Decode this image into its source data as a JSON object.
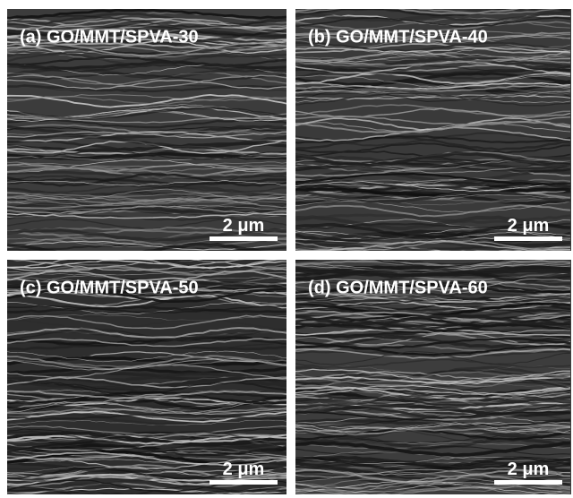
{
  "panels": [
    {
      "label": "(a)  GO/MMT/SPVA-30",
      "scale_bar": "2 μm"
    },
    {
      "label": "(b)  GO/MMT/SPVA-40",
      "scale_bar": "2 μm"
    },
    {
      "label": "(c)  GO/MMT/SPVA-50",
      "scale_bar": "2 μm"
    },
    {
      "label": "(d)  GO/MMT/SPVA-60",
      "scale_bar": "2 μm"
    }
  ]
}
